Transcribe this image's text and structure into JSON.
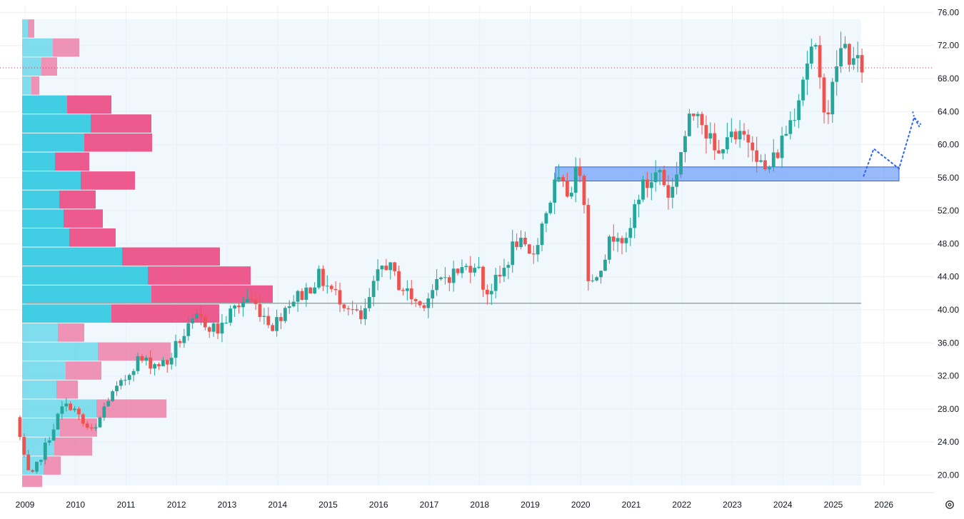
{
  "chart_data": {
    "type": "candlestick",
    "interval": "monthly",
    "y_axis": {
      "position": "right",
      "range": [
        18.5,
        77.0
      ],
      "tick_labels": [
        "76.00",
        "72.00",
        "68.00",
        "64.00",
        "60.00",
        "56.00",
        "52.00",
        "48.00",
        "44.00",
        "40.00",
        "36.00",
        "32.00",
        "28.00",
        "24.00",
        "20.00"
      ],
      "tick_values": [
        76,
        72,
        68,
        64,
        60,
        56,
        52,
        48,
        44,
        40,
        36,
        32,
        28,
        24,
        20
      ]
    },
    "x_axis": {
      "tick_labels": [
        "2009",
        "2010",
        "2011",
        "2012",
        "2013",
        "2014",
        "2015",
        "2016",
        "2017",
        "2018",
        "2019",
        "2020",
        "2021",
        "2022",
        "2023",
        "2024",
        "2025",
        "2026"
      ],
      "tick_values": [
        2009,
        2010,
        2011,
        2012,
        2013,
        2014,
        2015,
        2016,
        2017,
        2018,
        2019,
        2020,
        2021,
        2022,
        2023,
        2024,
        2025,
        2026
      ]
    },
    "grid": true,
    "colors": {
      "up": "#26a69a",
      "down": "#ef5350",
      "vp_up": "#22c7e0",
      "vp_down": "#ec407a",
      "zone": "#5b8ff9",
      "shade": "#e3f2fd",
      "last_price_line": "#b03a5b",
      "support_line": "#9aa6a8",
      "projection": "#2962ff"
    },
    "candles_anchor_date": "2008-11",
    "anchor_points": [
      [
        2008.9,
        27
      ],
      [
        2009.1,
        21
      ],
      [
        2009.2,
        19.5
      ],
      [
        2009.45,
        23
      ],
      [
        2009.8,
        28
      ],
      [
        2010.0,
        28.5
      ],
      [
        2010.25,
        26
      ],
      [
        2010.45,
        25
      ],
      [
        2010.7,
        29
      ],
      [
        2011.0,
        31
      ],
      [
        2011.3,
        34
      ],
      [
        2011.6,
        33.5
      ],
      [
        2011.9,
        33.5
      ],
      [
        2012.1,
        36
      ],
      [
        2012.5,
        39
      ],
      [
        2012.9,
        37.5
      ],
      [
        2013.2,
        40
      ],
      [
        2013.5,
        41.5
      ],
      [
        2013.8,
        39.5
      ],
      [
        2014.0,
        38
      ],
      [
        2014.3,
        41
      ],
      [
        2014.6,
        42
      ],
      [
        2014.9,
        44
      ],
      [
        2015.2,
        42
      ],
      [
        2015.5,
        40.5
      ],
      [
        2015.75,
        38.5
      ],
      [
        2016.0,
        43
      ],
      [
        2016.2,
        46
      ],
      [
        2016.5,
        43
      ],
      [
        2016.9,
        40.5
      ],
      [
        2017.1,
        42
      ],
      [
        2017.4,
        44
      ],
      [
        2017.8,
        45
      ],
      [
        2018.0,
        46
      ],
      [
        2018.2,
        42
      ],
      [
        2018.5,
        44
      ],
      [
        2018.8,
        48.5
      ],
      [
        2019.1,
        46
      ],
      [
        2019.4,
        52
      ],
      [
        2019.6,
        55.5
      ],
      [
        2019.8,
        54
      ],
      [
        2020.05,
        57
      ],
      [
        2020.12,
        58.5
      ],
      [
        2020.2,
        45
      ],
      [
        2020.3,
        43
      ],
      [
        2020.5,
        46
      ],
      [
        2020.8,
        50
      ],
      [
        2021.0,
        47.5
      ],
      [
        2021.2,
        54
      ],
      [
        2021.45,
        55.5
      ],
      [
        2021.65,
        57
      ],
      [
        2021.8,
        54
      ],
      [
        2021.95,
        55
      ],
      [
        2022.0,
        58
      ],
      [
        2022.2,
        62
      ],
      [
        2022.4,
        65
      ],
      [
        2022.6,
        61
      ],
      [
        2022.8,
        58
      ],
      [
        2022.95,
        62
      ],
      [
        2023.1,
        60
      ],
      [
        2023.35,
        61
      ],
      [
        2023.5,
        60.5
      ],
      [
        2023.7,
        56.5
      ],
      [
        2023.85,
        57.5
      ],
      [
        2024.0,
        59.5
      ],
      [
        2024.3,
        64
      ],
      [
        2024.55,
        70
      ],
      [
        2024.7,
        72
      ],
      [
        2024.85,
        66
      ],
      [
        2025.0,
        64
      ],
      [
        2025.15,
        70
      ],
      [
        2025.3,
        72
      ],
      [
        2025.5,
        69.5
      ]
    ],
    "volume_profile": {
      "row_edges": [
        75.2,
        72.9,
        70.6,
        68.3,
        66.0,
        63.7,
        61.4,
        59.1,
        56.8,
        54.5,
        52.2,
        49.9,
        47.6,
        45.3,
        43.0,
        40.7,
        38.4,
        36.1,
        33.8,
        31.5,
        29.2,
        26.9,
        24.6,
        22.3,
        20.0,
        18.5
      ],
      "up": [
        8,
        43,
        27,
        13,
        63,
        96,
        87,
        46,
        82,
        52,
        58,
        66,
        140,
        176,
        181,
        125,
        50,
        106,
        61,
        48,
        104,
        53,
        45,
        30,
        0
      ],
      "down": [
        9,
        37,
        22,
        11,
        62,
        85,
        95,
        48,
        76,
        51,
        55,
        65,
        137,
        144,
        170,
        151,
        37,
        102,
        50,
        30,
        98,
        52,
        53,
        24,
        28
      ]
    },
    "drawings": {
      "zone": {
        "from_year": 2019.5,
        "to_year": 2026.3,
        "low": 55.6,
        "high": 57.3
      },
      "support_line": {
        "from_year": 2009.0,
        "to_year": 2025.55,
        "price": 40.8
      },
      "last_price_level": 69.3,
      "shaded_range": {
        "from_year": 2009.0,
        "to_year": 2025.55
      },
      "projection_path": [
        [
          2025.6,
          56.2
        ],
        [
          2025.8,
          59.5
        ],
        [
          2026.3,
          57.1
        ],
        [
          2026.6,
          63.3
        ],
        [
          2026.7,
          62.2
        ]
      ]
    }
  }
}
